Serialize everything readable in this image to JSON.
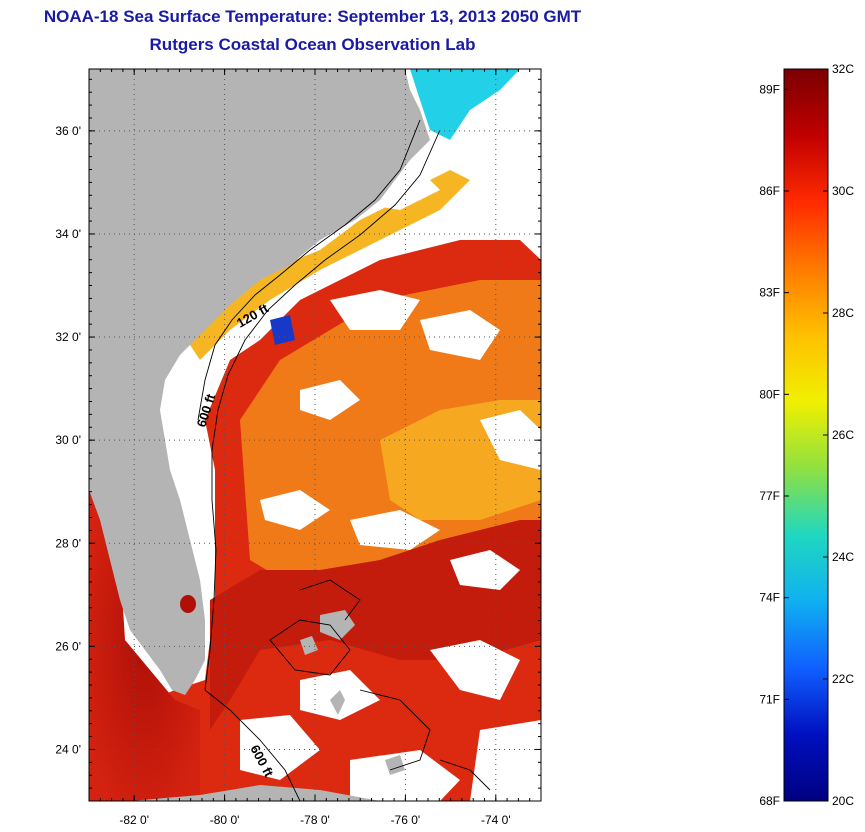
{
  "title": {
    "line1": "NOAA-18 Sea Surface Temperature:  September 13, 2013 2050 GMT",
    "line2": "Rutgers Coastal Ocean Observation Lab"
  },
  "map": {
    "lat_range": [
      23,
      37.2
    ],
    "lon_range": [
      -83,
      -73
    ],
    "lat_ticks": [
      {
        "value": 24,
        "label": "24 0'"
      },
      {
        "value": 26,
        "label": "26 0'"
      },
      {
        "value": 28,
        "label": "28 0'"
      },
      {
        "value": 30,
        "label": "30 0'"
      },
      {
        "value": 32,
        "label": "32 0'"
      },
      {
        "value": 34,
        "label": "34 0'"
      },
      {
        "value": 36,
        "label": "36 0'"
      }
    ],
    "lon_ticks": [
      {
        "value": -82,
        "label": "-82 0'"
      },
      {
        "value": -80,
        "label": "-80 0'"
      },
      {
        "value": -78,
        "label": "-78 0'"
      },
      {
        "value": -76,
        "label": "-76 0'"
      },
      {
        "value": -74,
        "label": "-74 0'"
      }
    ],
    "contour_labels": [
      "120 ft",
      "600 ft",
      "600 ft"
    ],
    "colors": {
      "land": "#b4b4b4",
      "missing": "#ffffff",
      "warm": "#d8240e",
      "hot": "#a80e0a",
      "orange": "#f08018",
      "yellow": "#f8c020",
      "cyan": "#20d8f0",
      "blue": "#1020c0"
    }
  },
  "colorbar": {
    "range_c": [
      20,
      32
    ],
    "celsius_labels": [
      "32C",
      "30C",
      "28C",
      "26C",
      "24C",
      "22C",
      "20C"
    ],
    "fahrenheit_labels": [
      "89F",
      "86F",
      "83F",
      "80F",
      "77F",
      "74F",
      "71F",
      "68F"
    ],
    "stops": [
      "#7a0000",
      "#c00000",
      "#ff2a00",
      "#ff7a00",
      "#ffc000",
      "#f0f000",
      "#90e040",
      "#20d8c0",
      "#10b0f0",
      "#1060ff",
      "#0010c0",
      "#000080"
    ]
  }
}
